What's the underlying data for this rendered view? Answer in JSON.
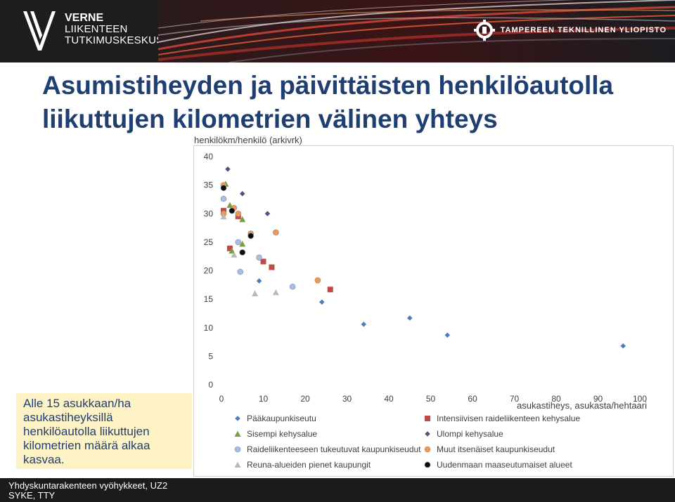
{
  "header": {
    "brand_line1": "VERNE",
    "brand_line2": "LIIKENTEEN",
    "brand_line3": "TUTKIMUSKESKUS",
    "university": "TAMPEREEN TEKNILLINEN YLIOPISTO"
  },
  "title": {
    "line1": "Asumistiheyden ja päivittäisten henkilöautolla",
    "line2": "liikuttujen kilometrien välinen yhteys"
  },
  "callout": {
    "text": "Alle 15 asukkaan/ha asukastiheyksillä henkilöautolla liikuttujen kilometrien määrä alkaa kasvaa."
  },
  "footer": {
    "line1": "Yhdyskuntarakenteen vyöhykkeet, UZ2",
    "line2": "SYKE, TTY"
  },
  "colors": {
    "title": "#1f3f73",
    "callout_bg": "#fdf3c6"
  },
  "chart_data": {
    "type": "scatter",
    "title": "",
    "ylabel": "henkilökm/henkilö (arkivrk)",
    "xlabel": "asukastiheys, asukasta/hehtaari",
    "xlim": [
      0,
      100
    ],
    "ylim": [
      0,
      40
    ],
    "x_ticks": [
      "0",
      "10",
      "20",
      "30",
      "40",
      "50",
      "60",
      "70",
      "80",
      "90",
      "100"
    ],
    "y_ticks": [
      "0",
      "5",
      "10",
      "15",
      "20",
      "25",
      "30",
      "35",
      "40"
    ],
    "grid": false,
    "legend_position": "bottom",
    "series": [
      {
        "name": "Pääkaupunkiseutu",
        "marker": "diamond",
        "color": "#4a7ebb",
        "points": [
          [
            9,
            18.2
          ],
          [
            24,
            14.5
          ],
          [
            34,
            10.6
          ],
          [
            45,
            11.7
          ],
          [
            54,
            8.7
          ],
          [
            96,
            6.8
          ]
        ]
      },
      {
        "name": "Intensiivisen raideliikenteen kehysalue",
        "marker": "square",
        "color": "#be4b48",
        "points": [
          [
            0.5,
            30.5
          ],
          [
            2,
            23.9
          ],
          [
            4,
            29.5
          ],
          [
            10,
            21.6
          ],
          [
            12,
            20.6
          ],
          [
            26,
            16.7
          ]
        ]
      },
      {
        "name": "Sisempi kehysalue",
        "marker": "triangle",
        "color": "#77a040",
        "points": [
          [
            1,
            35.2
          ],
          [
            2,
            31.5
          ],
          [
            5,
            29
          ],
          [
            5,
            24.7
          ],
          [
            2.5,
            23.5
          ]
        ]
      },
      {
        "name": "Ulompi kehysalue",
        "marker": "diamond",
        "color": "#5e4a7e",
        "points": [
          [
            1.5,
            37.8
          ],
          [
            5,
            33.5
          ],
          [
            11,
            30
          ]
        ]
      },
      {
        "name": "Raideliikenteeseen tukeutuvat kaupunkiseudut",
        "marker": "circle",
        "color": "#a8bde0",
        "points": [
          [
            0.5,
            32.6
          ],
          [
            4,
            25
          ],
          [
            4.5,
            19.8
          ],
          [
            9,
            22.3
          ],
          [
            17,
            17.2
          ]
        ]
      },
      {
        "name": "Muut itsenäiset kaupunkiseudut",
        "marker": "circle",
        "color": "#f79646",
        "points": [
          [
            0.5,
            35
          ],
          [
            0.5,
            30
          ],
          [
            3,
            31
          ],
          [
            4,
            30
          ],
          [
            7,
            26.5
          ],
          [
            13,
            26.7
          ],
          [
            23,
            18.3
          ]
        ]
      },
      {
        "name": "Reuna-alueiden pienet kaupungit",
        "marker": "triangle",
        "color": "#b9b9b9",
        "points": [
          [
            0.5,
            29.5
          ],
          [
            3,
            22.8
          ],
          [
            8,
            16
          ],
          [
            13,
            16.2
          ]
        ]
      },
      {
        "name": "Uudenmaan maaseutumaiset alueet",
        "marker": "circle",
        "color": "#0d0d0d",
        "points": [
          [
            0.5,
            34.5
          ],
          [
            2.5,
            30.5
          ],
          [
            5,
            23.2
          ],
          [
            7,
            26.1
          ]
        ]
      }
    ]
  }
}
